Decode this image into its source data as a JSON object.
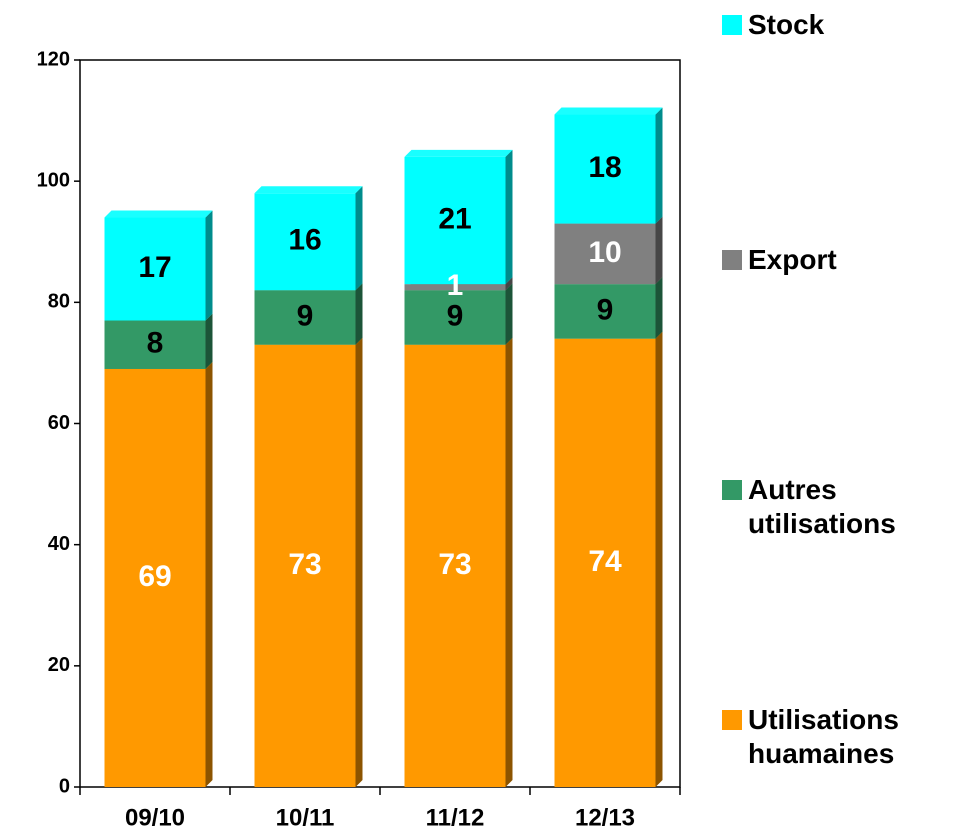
{
  "chart_data": {
    "type": "stacked_bar",
    "categories": [
      "09/10",
      "10/11",
      "11/12",
      "12/13"
    ],
    "series": [
      {
        "name": "Utilisations huamaines",
        "color": "#ff9900",
        "label_color": "#ffffff",
        "values": [
          69,
          73,
          73,
          74
        ]
      },
      {
        "name": "Autres utilisations",
        "color": "#339966",
        "label_color": "#000000",
        "values": [
          8,
          9,
          9,
          9
        ]
      },
      {
        "name": "Export",
        "color": "#808080",
        "label_color": "#ffffff",
        "values": [
          null,
          null,
          1,
          10
        ]
      },
      {
        "name": "Stock",
        "color": "#00ffff",
        "label_color": "#000000",
        "values": [
          17,
          16,
          21,
          18
        ]
      }
    ],
    "ylim": [
      0,
      120
    ],
    "yticks": [
      0,
      20,
      40,
      60,
      80,
      100,
      120
    ],
    "grid": false
  }
}
